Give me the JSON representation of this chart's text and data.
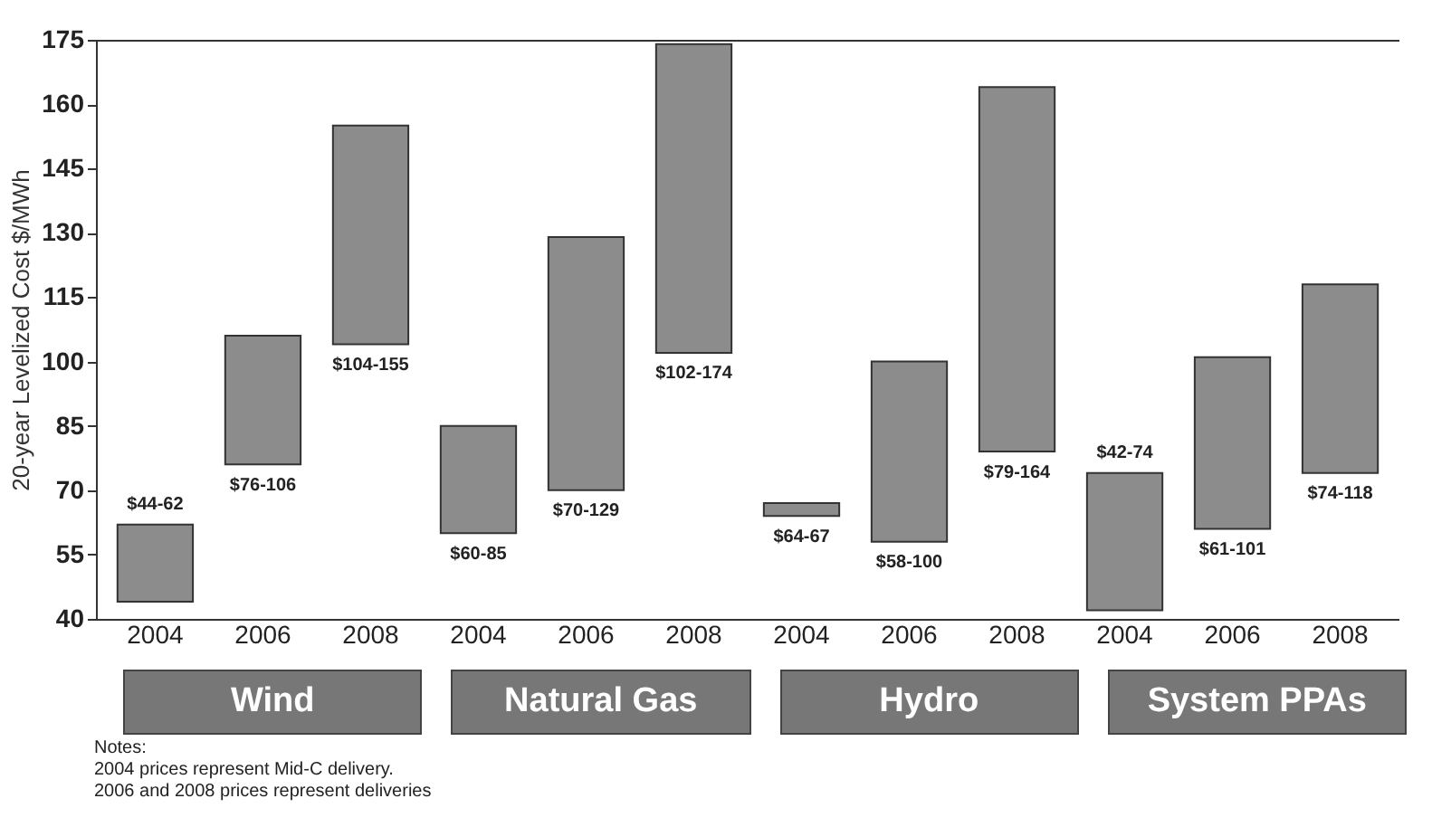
{
  "chart_data": {
    "type": "bar",
    "ylabel": "20-year Levelized Cost $/MWh",
    "categories": [
      "2004",
      "2006",
      "2008",
      "2004",
      "2006",
      "2008",
      "2004",
      "2006",
      "2008",
      "2004",
      "2006",
      "2008"
    ],
    "base": [
      44,
      76,
      104,
      60,
      70,
      102,
      64,
      58,
      79,
      42,
      61,
      74
    ],
    "values": [
      18,
      30,
      51,
      25,
      59,
      72,
      3,
      42,
      85,
      32,
      40,
      44
    ],
    "value_labels": [
      "$44-62",
      "$76-106",
      "$104-155",
      "$60-85",
      "$70-129",
      "$102-174",
      "$64-67",
      "$58-100",
      "$79-164",
      "$42-74",
      "$61-101",
      "$74-118"
    ],
    "color": "#8c8c8c",
    "ylim": [
      40,
      175
    ],
    "yticks": [
      40,
      55,
      70,
      85,
      100,
      115,
      130,
      145,
      160,
      175
    ],
    "grid": false,
    "annotations": [
      "Wind",
      "Natural Gas",
      "Hydro",
      "System PPAs",
      "Notes:",
      "2004 prices represent Mid-C delivery.",
      "2006 and 2008 prices represent deliveries"
    ]
  }
}
